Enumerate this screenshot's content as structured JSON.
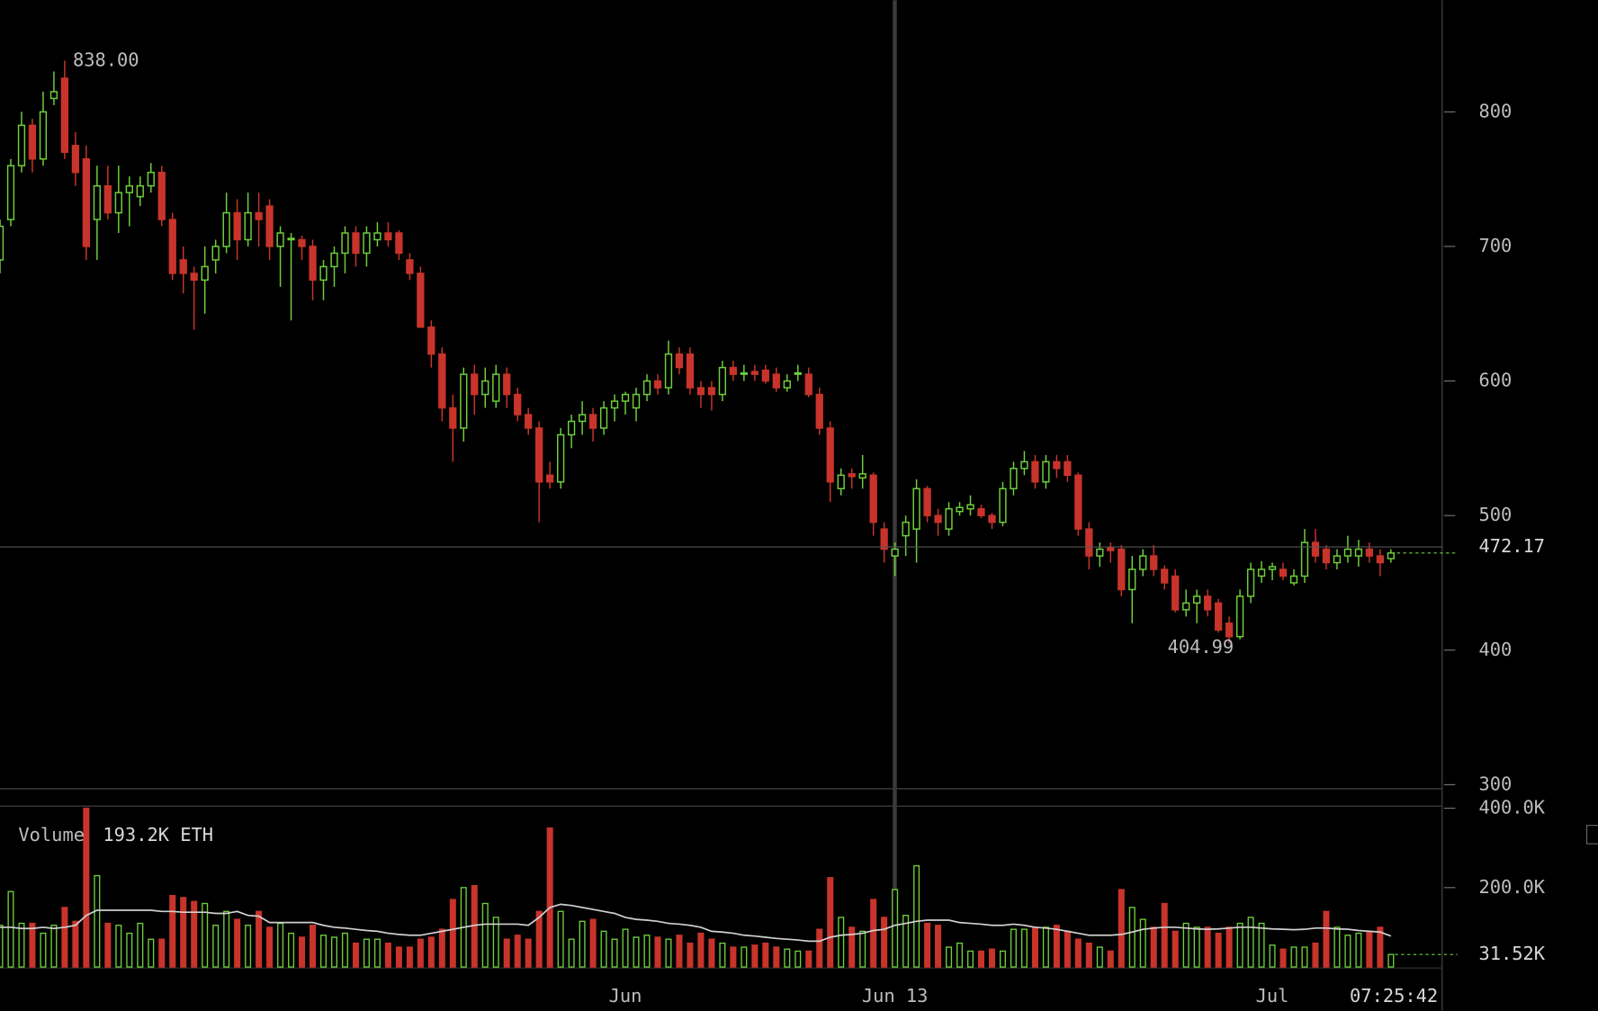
{
  "chart_data": {
    "type": "candlestick",
    "up_color": "#6fcf3c",
    "down_color": "#c8342b",
    "ylim": [
      297,
      883
    ],
    "yticks": [
      300,
      400,
      500,
      600,
      700,
      800
    ],
    "categories": [
      null,
      null,
      null,
      null,
      null,
      null,
      null,
      null,
      null,
      null,
      null,
      null,
      null,
      null,
      null,
      null,
      null,
      null,
      null,
      null,
      null,
      null,
      null,
      null,
      null,
      null,
      null,
      null,
      null,
      null,
      null,
      null,
      null,
      null,
      null,
      null,
      null,
      null,
      null,
      null,
      null,
      null,
      null,
      null,
      null,
      null,
      null,
      null,
      null,
      null,
      null,
      null,
      null,
      null,
      null,
      null,
      null,
      null,
      "Jun",
      null,
      null,
      null,
      null,
      null,
      null,
      null,
      null,
      null,
      null,
      null,
      null,
      null,
      null,
      null,
      null,
      null,
      null,
      null,
      null,
      null,
      null,
      null,
      null,
      "Jun 13",
      null,
      null,
      null,
      null,
      null,
      null,
      null,
      null,
      null,
      null,
      null,
      null,
      null,
      null,
      null,
      null,
      null,
      null,
      null,
      null,
      null,
      null,
      null,
      null,
      null,
      null,
      null,
      null,
      null,
      null,
      null,
      null,
      null,
      null,
      "Jul",
      null,
      null,
      null,
      null,
      null,
      null,
      null,
      null,
      null,
      null,
      null
    ],
    "time_label": "07:25:42",
    "ohlc": [
      [
        690,
        720,
        680,
        715
      ],
      [
        720,
        765,
        715,
        760
      ],
      [
        760,
        800,
        755,
        790
      ],
      [
        790,
        795,
        755,
        765
      ],
      [
        765,
        815,
        760,
        800
      ],
      [
        810,
        830,
        805,
        815
      ],
      [
        825,
        838,
        765,
        770
      ],
      [
        775,
        785,
        745,
        755
      ],
      [
        765,
        775,
        690,
        700
      ],
      [
        720,
        760,
        690,
        745
      ],
      [
        745,
        760,
        720,
        725
      ],
      [
        725,
        760,
        710,
        740
      ],
      [
        740,
        752,
        715,
        745
      ],
      [
        737,
        752,
        730,
        745
      ],
      [
        745,
        762,
        740,
        755
      ],
      [
        755,
        760,
        715,
        720
      ],
      [
        720,
        725,
        675,
        680
      ],
      [
        690,
        700,
        665,
        680
      ],
      [
        680,
        685,
        638,
        675
      ],
      [
        675,
        700,
        650,
        685
      ],
      [
        690,
        705,
        680,
        700
      ],
      [
        700,
        740,
        695,
        725
      ],
      [
        725,
        735,
        690,
        705
      ],
      [
        705,
        740,
        700,
        725
      ],
      [
        725,
        740,
        700,
        720
      ],
      [
        730,
        735,
        690,
        700
      ],
      [
        700,
        715,
        670,
        710
      ],
      [
        705,
        710,
        645,
        706
      ],
      [
        705,
        708,
        690,
        700
      ],
      [
        700,
        705,
        660,
        675
      ],
      [
        675,
        690,
        660,
        685
      ],
      [
        685,
        700,
        670,
        695
      ],
      [
        695,
        715,
        680,
        710
      ],
      [
        710,
        715,
        685,
        695
      ],
      [
        695,
        715,
        685,
        710
      ],
      [
        705,
        718,
        700,
        710
      ],
      [
        710,
        718,
        700,
        705
      ],
      [
        710,
        712,
        690,
        695
      ],
      [
        690,
        695,
        675,
        680
      ],
      [
        680,
        685,
        640,
        640
      ],
      [
        640,
        645,
        610,
        620
      ],
      [
        620,
        625,
        570,
        580
      ],
      [
        580,
        590,
        540,
        565
      ],
      [
        565,
        610,
        555,
        605
      ],
      [
        605,
        612,
        575,
        590
      ],
      [
        590,
        610,
        580,
        600
      ],
      [
        585,
        612,
        580,
        605
      ],
      [
        605,
        610,
        580,
        590
      ],
      [
        590,
        595,
        570,
        575
      ],
      [
        575,
        580,
        560,
        565
      ],
      [
        565,
        570,
        495,
        525
      ],
      [
        530,
        540,
        520,
        525
      ],
      [
        525,
        565,
        520,
        560
      ],
      [
        560,
        575,
        550,
        570
      ],
      [
        570,
        585,
        560,
        575
      ],
      [
        575,
        580,
        555,
        565
      ],
      [
        565,
        585,
        560,
        580
      ],
      [
        580,
        590,
        570,
        585
      ],
      [
        585,
        592,
        575,
        590
      ],
      [
        580,
        595,
        570,
        590
      ],
      [
        590,
        605,
        585,
        600
      ],
      [
        600,
        605,
        590,
        595
      ],
      [
        595,
        630,
        590,
        620
      ],
      [
        620,
        625,
        605,
        610
      ],
      [
        620,
        625,
        590,
        595
      ],
      [
        595,
        600,
        580,
        590
      ],
      [
        595,
        600,
        578,
        590
      ],
      [
        590,
        615,
        585,
        610
      ],
      [
        610,
        615,
        600,
        605
      ],
      [
        605,
        612,
        600,
        606
      ],
      [
        607,
        612,
        600,
        605
      ],
      [
        608,
        612,
        598,
        600
      ],
      [
        605,
        610,
        592,
        595
      ],
      [
        595,
        605,
        592,
        600
      ],
      [
        605,
        612,
        600,
        606
      ],
      [
        605,
        610,
        588,
        590
      ],
      [
        590,
        595,
        560,
        565
      ],
      [
        565,
        570,
        510,
        525
      ],
      [
        520,
        535,
        515,
        530
      ],
      [
        531,
        535,
        520,
        529
      ],
      [
        528,
        545,
        520,
        531
      ],
      [
        530,
        532,
        485,
        495
      ],
      [
        490,
        495,
        465,
        475
      ],
      [
        470,
        480,
        455,
        475
      ],
      [
        485,
        500,
        470,
        495
      ],
      [
        490,
        527,
        465,
        520
      ],
      [
        520,
        522,
        495,
        500
      ],
      [
        500,
        505,
        485,
        495
      ],
      [
        490,
        510,
        485,
        505
      ],
      [
        503,
        510,
        500,
        506
      ],
      [
        505,
        515,
        500,
        508
      ],
      [
        505,
        508,
        498,
        500
      ],
      [
        500,
        502,
        490,
        495
      ],
      [
        495,
        525,
        492,
        520
      ],
      [
        520,
        540,
        515,
        535
      ],
      [
        535,
        548,
        530,
        540
      ],
      [
        540,
        545,
        520,
        525
      ],
      [
        525,
        545,
        520,
        540
      ],
      [
        540,
        545,
        528,
        535
      ],
      [
        540,
        545,
        525,
        530
      ],
      [
        530,
        532,
        485,
        490
      ],
      [
        490,
        495,
        460,
        470
      ],
      [
        470,
        480,
        462,
        475
      ],
      [
        476,
        480,
        465,
        474
      ],
      [
        475,
        478,
        440,
        445
      ],
      [
        445,
        470,
        420,
        460
      ],
      [
        460,
        475,
        455,
        470
      ],
      [
        470,
        478,
        455,
        460
      ],
      [
        460,
        463,
        445,
        450
      ],
      [
        455,
        460,
        428,
        430
      ],
      [
        430,
        445,
        425,
        435
      ],
      [
        435,
        445,
        420,
        440
      ],
      [
        440,
        445,
        425,
        430
      ],
      [
        435,
        438,
        413,
        415
      ],
      [
        420,
        425,
        404.99,
        410
      ],
      [
        410,
        445,
        408,
        440
      ],
      [
        440,
        465,
        435,
        460
      ],
      [
        455,
        466,
        450,
        460
      ],
      [
        460,
        465,
        452,
        462
      ],
      [
        460,
        465,
        452,
        455
      ],
      [
        450,
        460,
        448,
        455
      ],
      [
        455,
        490,
        450,
        480
      ],
      [
        480,
        490,
        465,
        470
      ],
      [
        475,
        478,
        460,
        465
      ],
      [
        465,
        475,
        460,
        470
      ],
      [
        470,
        485,
        465,
        475
      ],
      [
        470,
        482,
        462,
        475
      ],
      [
        475,
        480,
        465,
        470
      ],
      [
        470,
        475,
        455,
        465
      ],
      [
        468,
        475,
        465,
        472.17
      ]
    ],
    "high_label": {
      "value": 838,
      "label": "838.00"
    },
    "low_label": {
      "value": 404.99,
      "label": "404.99"
    },
    "last_price": {
      "value": 472.17,
      "label": "472.17"
    },
    "volume": {
      "label": "Volume",
      "readout": "193.2K ETH",
      "ylim": [
        0,
        408000
      ],
      "yticks": [
        {
          "value": 200000,
          "label": "200.0K"
        },
        {
          "value": 400000,
          "label": "400.0K"
        }
      ],
      "last": {
        "value": 31520,
        "label": "31.52K"
      },
      "ma_color": "#d0d0d0",
      "values": [
        105000,
        190000,
        110000,
        110000,
        85000,
        105000,
        150000,
        115000,
        400000,
        230000,
        110000,
        105000,
        85000,
        110000,
        70000,
        70000,
        180000,
        175000,
        165000,
        160000,
        105000,
        140000,
        120000,
        105000,
        140000,
        100000,
        110000,
        85000,
        75000,
        105000,
        80000,
        75000,
        85000,
        60000,
        70000,
        70000,
        60000,
        50000,
        50000,
        70000,
        75000,
        95000,
        170000,
        200000,
        205000,
        160000,
        125000,
        70000,
        80000,
        70000,
        140000,
        350000,
        140000,
        70000,
        115000,
        120000,
        90000,
        70000,
        95000,
        75000,
        80000,
        75000,
        70000,
        80000,
        60000,
        85000,
        70000,
        60000,
        50000,
        50000,
        55000,
        60000,
        50000,
        45000,
        40000,
        40000,
        95000,
        225000,
        125000,
        100000,
        90000,
        170000,
        125000,
        195000,
        130000,
        255000,
        110000,
        105000,
        50000,
        60000,
        40000,
        40000,
        45000,
        40000,
        95000,
        95000,
        100000,
        100000,
        105000,
        90000,
        70000,
        60000,
        50000,
        40000,
        195000,
        150000,
        120000,
        100000,
        160000,
        90000,
        110000,
        100000,
        100000,
        85000,
        100000,
        110000,
        125000,
        110000,
        55000,
        45000,
        50000,
        50000,
        60000,
        140000,
        100000,
        80000,
        85000,
        90000,
        100000,
        31520
      ],
      "ma": [
        100000,
        100000,
        97000,
        97000,
        100000,
        97000,
        100000,
        105000,
        130000,
        143000,
        143000,
        143000,
        143000,
        143000,
        143000,
        140000,
        140000,
        138000,
        138000,
        138000,
        135000,
        135000,
        140000,
        130000,
        128000,
        112000,
        112000,
        112000,
        112000,
        112000,
        105000,
        100000,
        98000,
        95000,
        92000,
        90000,
        85000,
        82000,
        80000,
        80000,
        85000,
        90000,
        95000,
        100000,
        105000,
        108000,
        108000,
        108000,
        108000,
        105000,
        125000,
        150000,
        158000,
        155000,
        150000,
        145000,
        140000,
        135000,
        125000,
        120000,
        118000,
        115000,
        110000,
        108000,
        105000,
        100000,
        90000,
        88000,
        85000,
        80000,
        78000,
        75000,
        72000,
        70000,
        68000,
        65000,
        65000,
        75000,
        80000,
        82000,
        85000,
        92000,
        95000,
        105000,
        110000,
        115000,
        118000,
        118000,
        118000,
        112000,
        110000,
        108000,
        105000,
        105000,
        108000,
        105000,
        100000,
        98000,
        95000,
        90000,
        85000,
        80000,
        80000,
        80000,
        82000,
        88000,
        95000,
        98000,
        100000,
        100000,
        98000,
        96000,
        95000,
        96000,
        98000,
        100000,
        100000,
        98000,
        96000,
        95000,
        94000,
        95000,
        98000,
        98000,
        96000,
        95000,
        92000,
        90000,
        88000,
        78000
      ]
    }
  }
}
